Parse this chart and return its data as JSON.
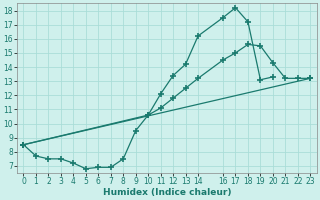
{
  "xlabel": "Humidex (Indice chaleur)",
  "bg_color": "#cff0ec",
  "line_color": "#1a7a6e",
  "grid_color": "#aaddd8",
  "xlim": [
    -0.5,
    23.5
  ],
  "ylim": [
    6.5,
    18.5
  ],
  "xticks": [
    0,
    1,
    2,
    3,
    4,
    5,
    6,
    7,
    8,
    9,
    10,
    11,
    12,
    13,
    14,
    16,
    17,
    18,
    19,
    20,
    21,
    22,
    23
  ],
  "yticks": [
    7,
    8,
    9,
    10,
    11,
    12,
    13,
    14,
    15,
    16,
    17,
    18
  ],
  "line1_x": [
    0,
    1,
    2,
    3,
    4,
    5,
    6,
    7,
    8,
    9,
    10,
    11,
    12,
    13,
    14,
    16,
    17,
    18,
    19,
    20
  ],
  "line1_y": [
    8.5,
    7.7,
    7.5,
    7.5,
    7.2,
    6.8,
    6.9,
    6.9,
    7.5,
    9.5,
    10.6,
    12.1,
    13.4,
    14.2,
    16.2,
    17.5,
    18.2,
    17.2,
    13.1,
    13.3
  ],
  "line2_x": [
    0,
    10,
    11,
    12,
    13,
    14,
    16,
    17,
    18,
    19,
    20,
    21,
    22,
    23
  ],
  "line2_y": [
    8.5,
    10.6,
    11.1,
    11.8,
    12.5,
    13.2,
    14.5,
    15.0,
    15.6,
    15.5,
    14.3,
    13.2,
    13.2,
    13.2
  ],
  "line3_x": [
    0,
    23
  ],
  "line3_y": [
    8.5,
    13.2
  ]
}
